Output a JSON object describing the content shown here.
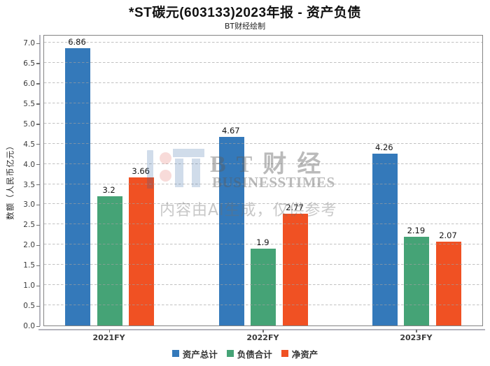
{
  "page": {
    "title": "*ST碳元(603133)2023年报 - 资产负债",
    "subtitle": "BT财经绘制"
  },
  "watermark": {
    "brand_cn": "BT财经",
    "brand_en": "BUSINESSTIMES",
    "disclaimer": "内容由AI生成，仅供参考"
  },
  "chart_data": {
    "type": "bar",
    "title": "*ST碳元(603133)2023年报 - 资产负债",
    "subtitle": "BT财经绘制",
    "categories": [
      "2021FY",
      "2022FY",
      "2023FY"
    ],
    "series": [
      {
        "name": "资产总计",
        "color": "#3479ba",
        "values": [
          6.86,
          4.67,
          4.26
        ],
        "labels": [
          "6.86",
          "4.67",
          "4.26"
        ]
      },
      {
        "name": "负债合计",
        "color": "#45a376",
        "values": [
          3.2,
          1.9,
          2.19
        ],
        "labels": [
          "3.2",
          "1.9",
          "2.19"
        ]
      },
      {
        "name": "净资产",
        "color": "#f05123",
        "values": [
          3.66,
          2.77,
          2.07
        ],
        "labels": [
          "3.66",
          "2.77",
          "2.07"
        ]
      }
    ],
    "xlabel": "",
    "ylabel": "数额（人民币亿元）",
    "ylim": [
      0,
      7.2
    ],
    "ytick_step": 0.5,
    "yticks": [
      "0.0",
      "0.5",
      "1.0",
      "1.5",
      "2.0",
      "2.5",
      "3.0",
      "3.5",
      "4.0",
      "4.5",
      "5.0",
      "5.5",
      "6.0",
      "6.5",
      "7.0"
    ],
    "grid": "horizontal-dashed-on-top",
    "legend_position": "bottom-center"
  }
}
